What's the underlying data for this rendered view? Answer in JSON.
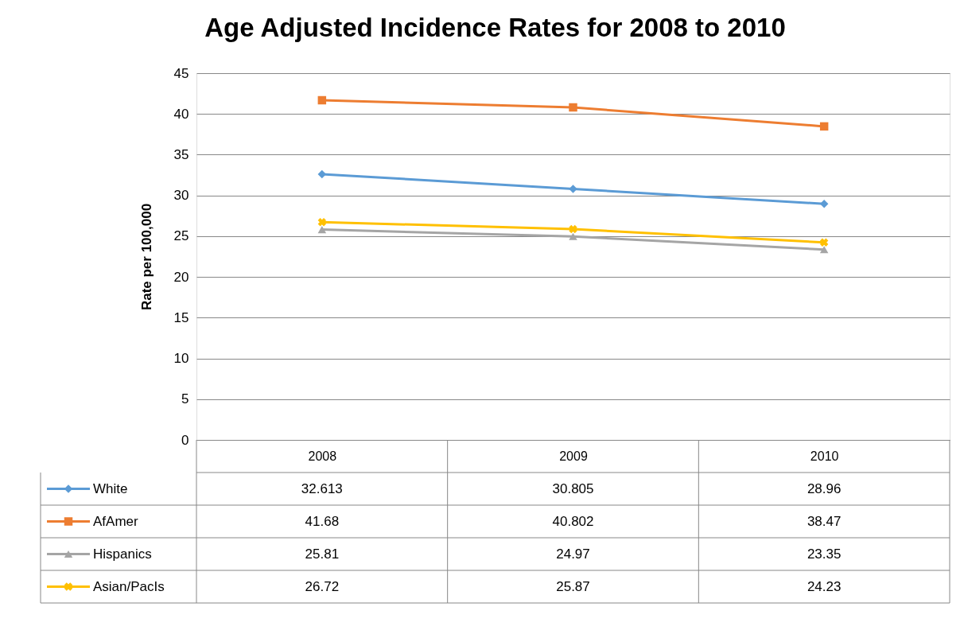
{
  "chart_data": {
    "type": "line",
    "title": "Age Adjusted Incidence Rates for 2008 to 2010",
    "ylabel": "Rate per 100,000",
    "categories": [
      "2008",
      "2009",
      "2010"
    ],
    "series": [
      {
        "name": "White",
        "color": "#5b9bd5",
        "marker": "diamond",
        "values": [
          32.613,
          30.805,
          28.96
        ]
      },
      {
        "name": "AfAmer",
        "color": "#ed7d31",
        "marker": "square",
        "values": [
          41.68,
          40.802,
          38.47
        ]
      },
      {
        "name": "Hispanics",
        "color": "#a5a5a5",
        "marker": "triangle",
        "values": [
          25.81,
          24.97,
          23.35
        ]
      },
      {
        "name": "Asian/PacIs",
        "color": "#ffc000",
        "marker": "cross",
        "values": [
          26.72,
          25.87,
          24.23
        ]
      }
    ],
    "ylim": [
      0,
      45
    ],
    "yticks": [
      0,
      5,
      10,
      15,
      20,
      25,
      30,
      35,
      40,
      45
    ],
    "grid": "y",
    "legend": "bottom",
    "data_labels": true
  }
}
